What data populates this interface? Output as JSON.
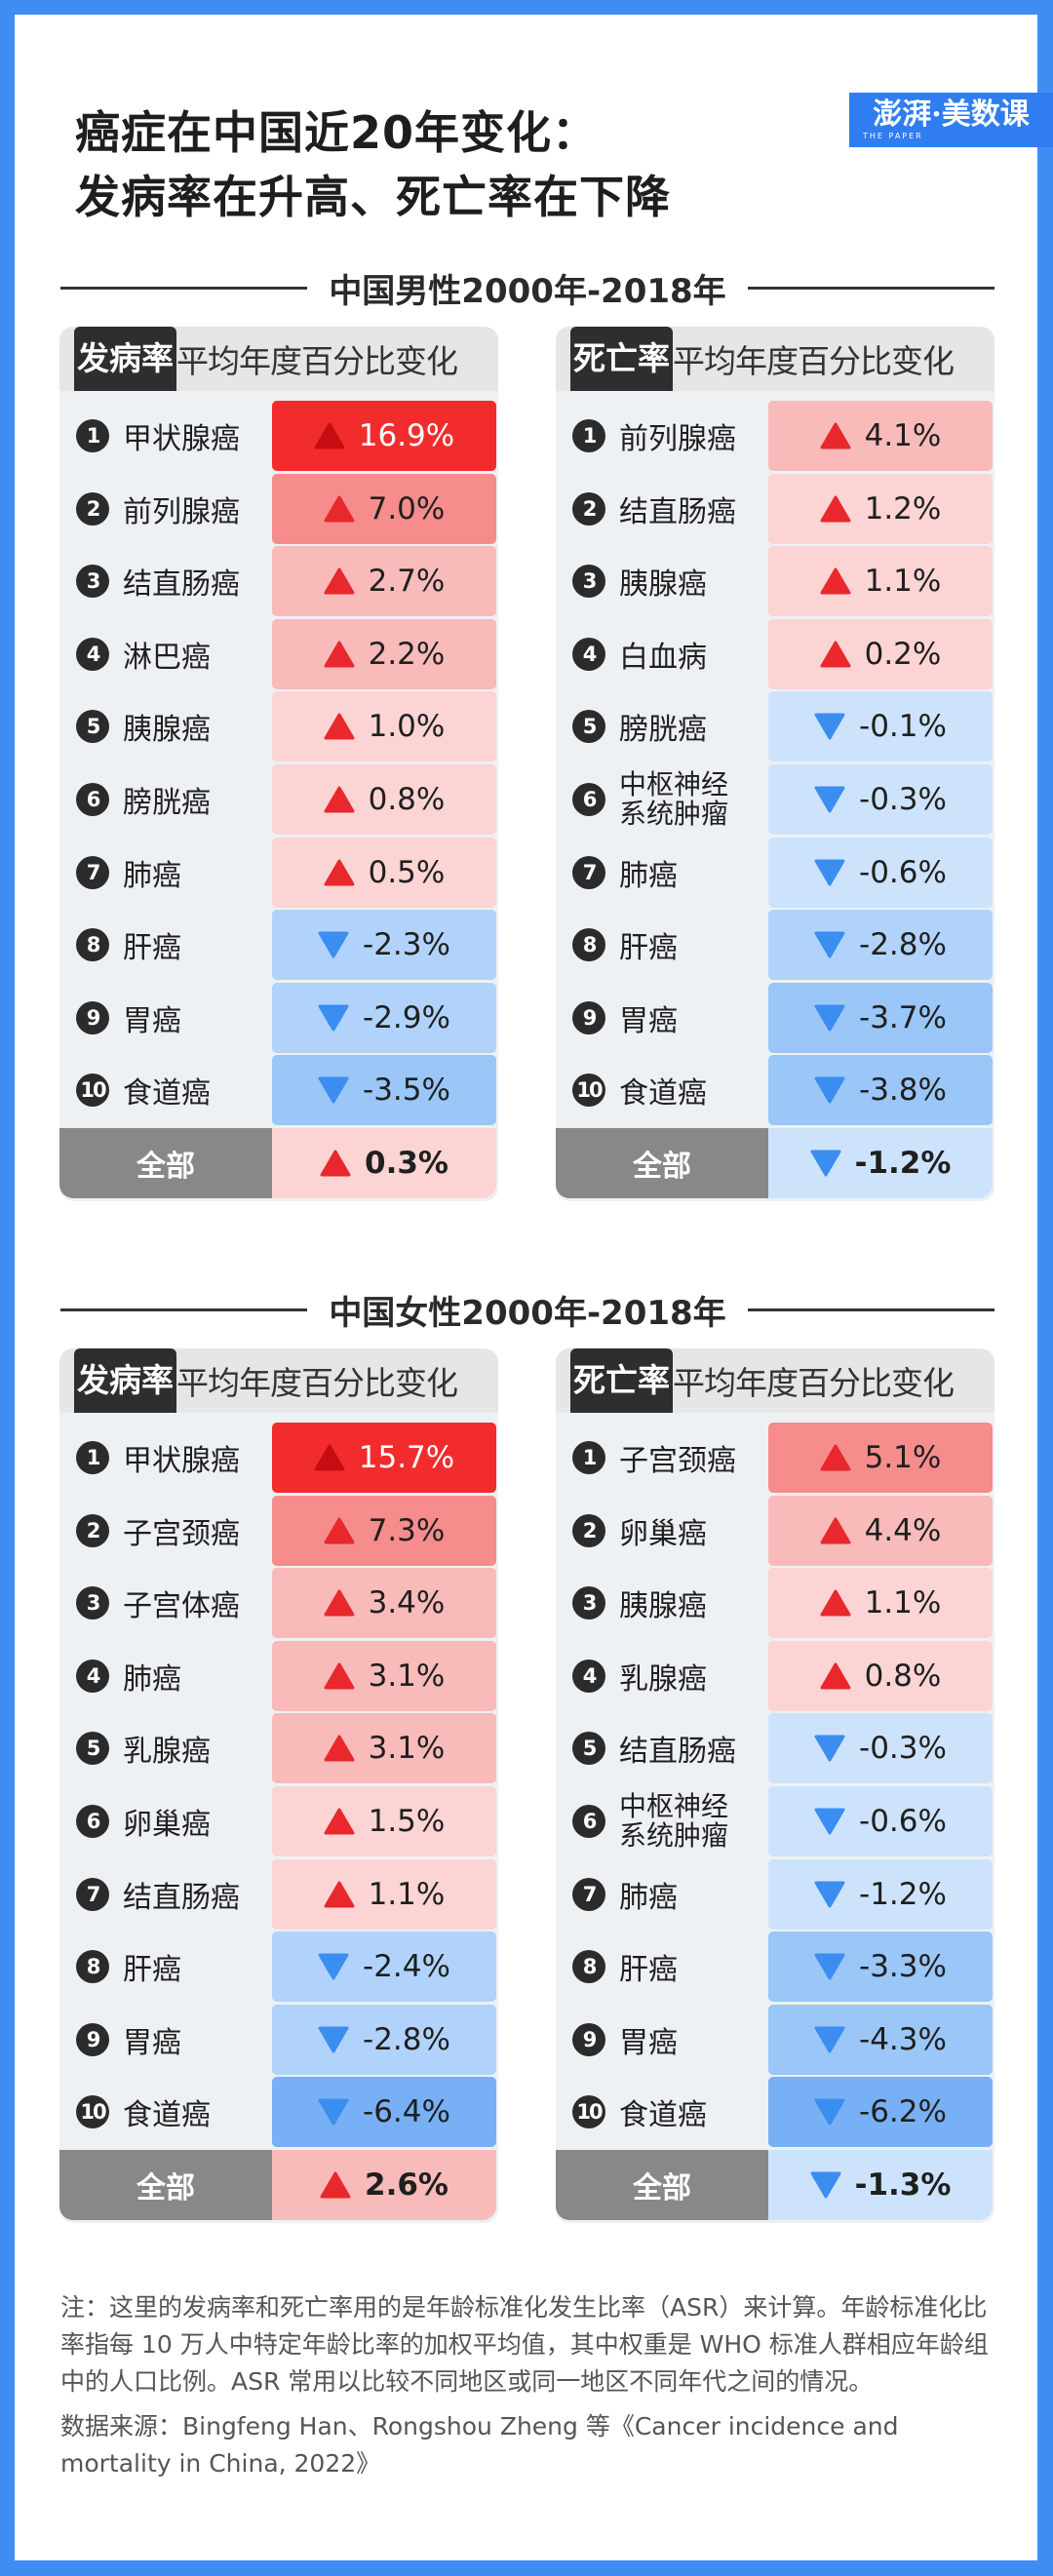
{
  "title": {
    "line1": "癌症在中国近20年变化：",
    "line2": "发病率在升高、死亡率在下降"
  },
  "logo": {
    "text": "澎湃·美数课",
    "sub": "THE PAPER"
  },
  "colors": {
    "frame": "#3f8cf3",
    "up_strong": "#f22c2c",
    "up_high": "#f68c8c",
    "up_mid": "#f9baba",
    "up_low": "#fcd4d4",
    "down_low": "#cde3fc",
    "down_mid": "#b1d3fb",
    "down_high": "#9ac6f8",
    "down_strong": "#78b0f5",
    "up_arrow": "#e8282c",
    "up_arrow_on_strong": "#c40e12",
    "down_arrow": "#3b8ef0"
  },
  "sections": [
    {
      "heading": "中国男性2000年-2018年",
      "panels": [
        {
          "tag": "发病率",
          "subtitle": "平均年度百分比变化",
          "rows": [
            {
              "rank": "1",
              "name": "甲状腺癌",
              "value": "16.9%"
            },
            {
              "rank": "2",
              "name": "前列腺癌",
              "value": "7.0%"
            },
            {
              "rank": "3",
              "name": "结直肠癌",
              "value": "2.7%"
            },
            {
              "rank": "4",
              "name": "淋巴癌",
              "value": "2.2%"
            },
            {
              "rank": "5",
              "name": "胰腺癌",
              "value": "1.0%"
            },
            {
              "rank": "6",
              "name": "膀胱癌",
              "value": "0.8%"
            },
            {
              "rank": "7",
              "name": "肺癌",
              "value": "0.5%"
            },
            {
              "rank": "8",
              "name": "肝癌",
              "value": "-2.3%"
            },
            {
              "rank": "9",
              "name": "胃癌",
              "value": "-2.9%"
            },
            {
              "rank": "10",
              "name": "食道癌",
              "value": "-3.5%"
            }
          ],
          "total": {
            "name": "全部",
            "value": "0.3%"
          }
        },
        {
          "tag": "死亡率",
          "subtitle": "平均年度百分比变化",
          "rows": [
            {
              "rank": "1",
              "name": "前列腺癌",
              "value": "4.1%"
            },
            {
              "rank": "2",
              "name": "结直肠癌",
              "value": "1.2%"
            },
            {
              "rank": "3",
              "name": "胰腺癌",
              "value": "1.1%"
            },
            {
              "rank": "4",
              "name": "白血病",
              "value": "0.2%"
            },
            {
              "rank": "5",
              "name": "膀胱癌",
              "value": "-0.1%"
            },
            {
              "rank": "6",
              "name": "中枢神经系统肿瘤",
              "value": "-0.3%"
            },
            {
              "rank": "7",
              "name": "肺癌",
              "value": "-0.6%"
            },
            {
              "rank": "8",
              "name": "肝癌",
              "value": "-2.8%"
            },
            {
              "rank": "9",
              "name": "胃癌",
              "value": "-3.7%"
            },
            {
              "rank": "10",
              "name": "食道癌",
              "value": "-3.8%"
            }
          ],
          "total": {
            "name": "全部",
            "value": "-1.2%"
          }
        }
      ]
    },
    {
      "heading": "中国女性2000年-2018年",
      "panels": [
        {
          "tag": "发病率",
          "subtitle": "平均年度百分比变化",
          "rows": [
            {
              "rank": "1",
              "name": "甲状腺癌",
              "value": "15.7%"
            },
            {
              "rank": "2",
              "name": "子宫颈癌",
              "value": "7.3%"
            },
            {
              "rank": "3",
              "name": "子宫体癌",
              "value": "3.4%"
            },
            {
              "rank": "4",
              "name": "肺癌",
              "value": "3.1%"
            },
            {
              "rank": "5",
              "name": "乳腺癌",
              "value": "3.1%"
            },
            {
              "rank": "6",
              "name": "卵巢癌",
              "value": "1.5%"
            },
            {
              "rank": "7",
              "name": "结直肠癌",
              "value": "1.1%"
            },
            {
              "rank": "8",
              "name": "肝癌",
              "value": "-2.4%"
            },
            {
              "rank": "9",
              "name": "胃癌",
              "value": "-2.8%"
            },
            {
              "rank": "10",
              "name": "食道癌",
              "value": "-6.4%"
            }
          ],
          "total": {
            "name": "全部",
            "value": "2.6%"
          }
        },
        {
          "tag": "死亡率",
          "subtitle": "平均年度百分比变化",
          "rows": [
            {
              "rank": "1",
              "name": "子宫颈癌",
              "value": "5.1%"
            },
            {
              "rank": "2",
              "name": "卵巢癌",
              "value": "4.4%"
            },
            {
              "rank": "3",
              "name": "胰腺癌",
              "value": "1.1%"
            },
            {
              "rank": "4",
              "name": "乳腺癌",
              "value": "0.8%"
            },
            {
              "rank": "5",
              "name": "结直肠癌",
              "value": "-0.3%"
            },
            {
              "rank": "6",
              "name": "中枢神经系统肿瘤",
              "value": "-0.6%"
            },
            {
              "rank": "7",
              "name": "肺癌",
              "value": "-1.2%"
            },
            {
              "rank": "8",
              "name": "肝癌",
              "value": "-3.3%"
            },
            {
              "rank": "9",
              "name": "胃癌",
              "value": "-4.3%"
            },
            {
              "rank": "10",
              "name": "食道癌",
              "value": "-6.2%"
            }
          ],
          "total": {
            "name": "全部",
            "value": "-1.3%"
          }
        }
      ]
    }
  ],
  "notes": {
    "note": "注：这里的发病率和死亡率用的是年龄标准化发生比率（ASR）来计算。年龄标准化比率指每 10 万人中特定年龄比率的加权平均值，其中权重是 WHO 标准人群相应年龄组中的人口比例。ASR 常用以比较不同地区或同一地区不同年代之间的情况。",
    "source": "数据来源：Bingfeng Han、Rongshou Zheng 等《Cancer incidence and mortality in China, 2022》"
  }
}
